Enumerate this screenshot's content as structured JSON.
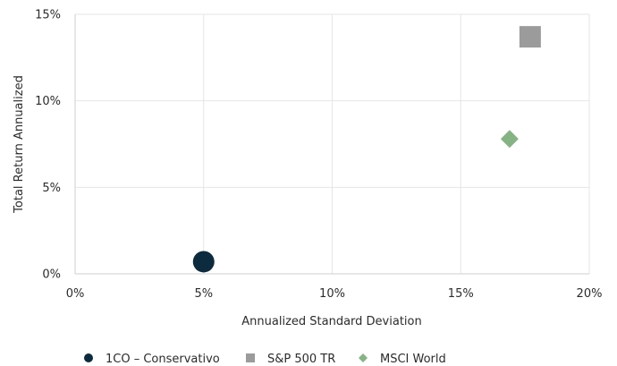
{
  "chart_data": {
    "type": "scatter",
    "title": "",
    "xlabel": "Annualized Standard Deviation",
    "ylabel": "Total Return Annualized",
    "xlim": [
      0,
      20
    ],
    "ylim": [
      0,
      15
    ],
    "x_ticks": [
      0,
      5,
      10,
      15,
      20
    ],
    "x_tick_labels": [
      "0%",
      "5%",
      "10%",
      "15%",
      "20%"
    ],
    "y_ticks": [
      0,
      5,
      10,
      15
    ],
    "y_tick_labels": [
      "0%",
      "5%",
      "10%",
      "15%"
    ],
    "grid": true,
    "legend_position": "bottom",
    "series": [
      {
        "name": "1CO – Conservativo",
        "x": 5.0,
        "y": 0.7,
        "marker": "circle",
        "color": "#0d2b3e"
      },
      {
        "name": "S&P 500 TR",
        "x": 17.7,
        "y": 13.7,
        "marker": "square",
        "color": "#9b9b9b"
      },
      {
        "name": "MSCI World",
        "x": 16.9,
        "y": 7.8,
        "marker": "diamond",
        "color": "#86b383"
      }
    ]
  }
}
